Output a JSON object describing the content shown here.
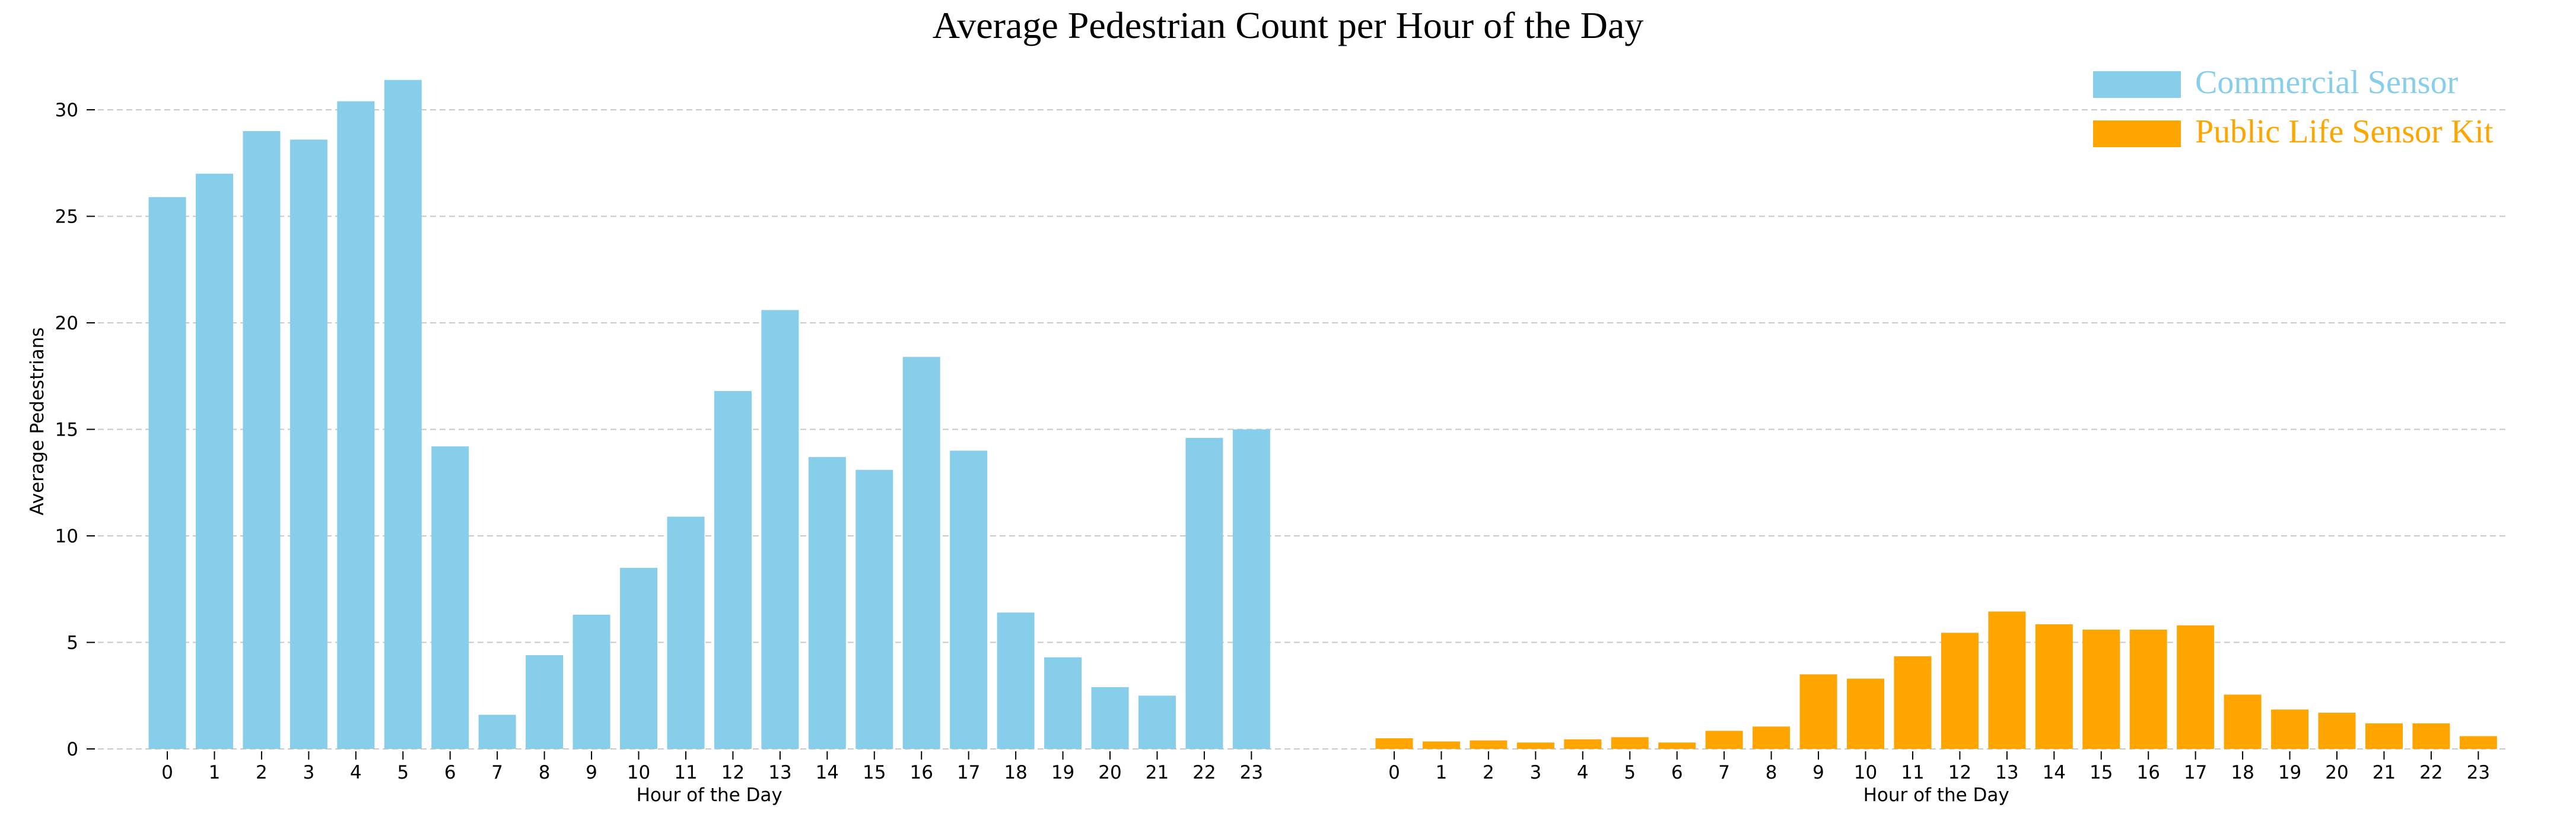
{
  "chart_data": {
    "type": "bar",
    "title": "Average Pedestrian Count per Hour of the Day",
    "ylabel": "Average Pedestrians",
    "xlabel": "Hour of the Day",
    "ylim": [
      0,
      32
    ],
    "yticks": [
      0,
      5,
      10,
      15,
      20,
      25,
      30
    ],
    "grid": "horizontal dashed",
    "legend_position": "top-right",
    "categories": [
      "0",
      "1",
      "2",
      "3",
      "4",
      "5",
      "6",
      "7",
      "8",
      "9",
      "10",
      "11",
      "12",
      "13",
      "14",
      "15",
      "16",
      "17",
      "18",
      "19",
      "20",
      "21",
      "22",
      "23"
    ],
    "series": [
      {
        "name": "Commercial Sensor",
        "color": "#87ceeb",
        "values": [
          25.9,
          27.0,
          29.0,
          28.6,
          30.4,
          31.4,
          14.2,
          1.6,
          4.4,
          6.3,
          8.5,
          10.9,
          16.8,
          20.6,
          13.7,
          13.1,
          18.4,
          14.0,
          6.4,
          4.3,
          2.9,
          2.5,
          14.6,
          15.0
        ]
      },
      {
        "name": "Public Life Sensor Kit",
        "color": "#ffa500",
        "values": [
          0.5,
          0.35,
          0.4,
          0.3,
          0.45,
          0.55,
          0.3,
          0.85,
          1.05,
          3.5,
          3.3,
          4.35,
          5.45,
          6.45,
          5.85,
          5.6,
          5.6,
          5.8,
          2.55,
          1.85,
          1.7,
          1.2,
          1.2,
          0.6
        ]
      }
    ]
  }
}
